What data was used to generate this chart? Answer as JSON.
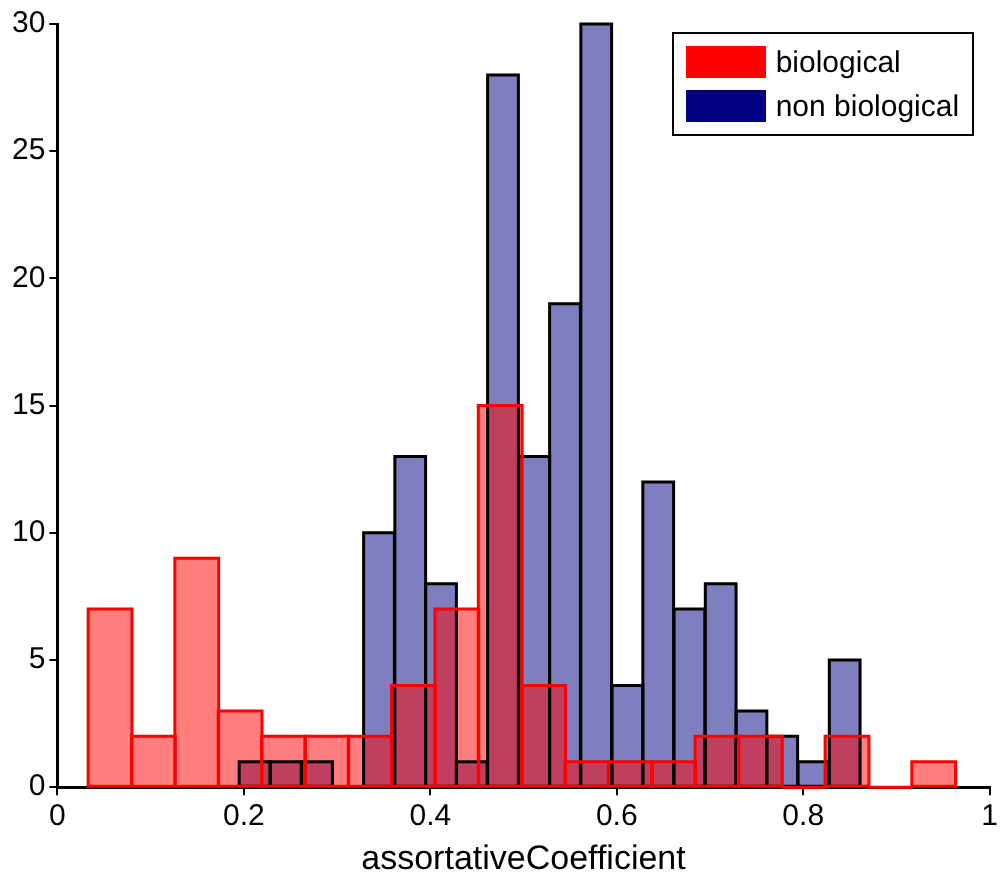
{
  "chart_data": {
    "type": "histogram",
    "xlabel": "assortativeCoefficient",
    "xlim": [
      0,
      1
    ],
    "xticks": [
      0,
      0.2,
      0.4,
      0.6,
      0.8,
      1
    ],
    "ylim": [
      0,
      30
    ],
    "yticks": [
      0,
      5,
      10,
      15,
      20,
      25,
      30
    ],
    "grid": false,
    "legend": "top right",
    "bins": [
      0.033,
      0.08,
      0.126,
      0.173,
      0.219,
      0.266,
      0.312,
      0.359,
      0.405,
      0.452,
      0.498,
      0.545,
      0.591,
      0.638,
      0.684,
      0.731,
      0.777,
      0.824,
      0.87,
      0.917,
      0.963
    ],
    "series": [
      {
        "name": "biological",
        "color": "#ff0000",
        "values": [
          7,
          2,
          9,
          3,
          2,
          2,
          2,
          4,
          7,
          15,
          4,
          1,
          1,
          1,
          2,
          2,
          0,
          2,
          0,
          1
        ]
      },
      {
        "name": "non biological",
        "color": "#000080",
        "bins": [
          0.195,
          0.228,
          0.262,
          0.295,
          0.328,
          0.362,
          0.395,
          0.428,
          0.461,
          0.495,
          0.528,
          0.561,
          0.595,
          0.628,
          0.661,
          0.695,
          0.728,
          0.761,
          0.794,
          0.828,
          0.861
        ],
        "values": [
          1,
          1,
          1,
          0,
          10,
          13,
          8,
          1,
          28,
          13,
          19,
          30,
          4,
          12,
          7,
          8,
          3,
          2,
          1,
          5
        ]
      }
    ]
  }
}
